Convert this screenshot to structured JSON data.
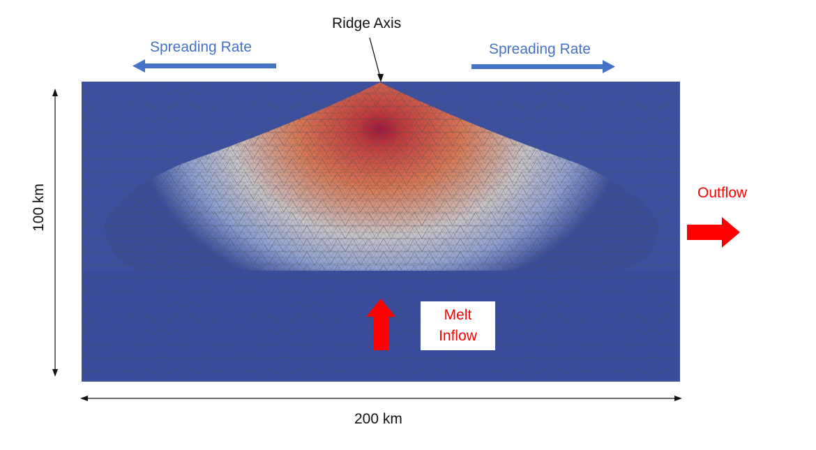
{
  "labels": {
    "ridge_axis": "Ridge Axis",
    "spreading_left": "Spreading Rate",
    "spreading_right": "Spreading Rate",
    "outflow": "Outflow",
    "melt_line1": "Melt",
    "melt_line2": "Inflow",
    "width": "200 km",
    "height": "100 km"
  },
  "colors": {
    "background_mantle": "#3a4c9c",
    "hot_core": "#b8203a",
    "warm": "#d8734f",
    "neutral": "#c9c9cf",
    "spreading_arrow": "#4472c4",
    "flow_arrow": "#ff0000",
    "mesh_lines": "#555555"
  }
}
